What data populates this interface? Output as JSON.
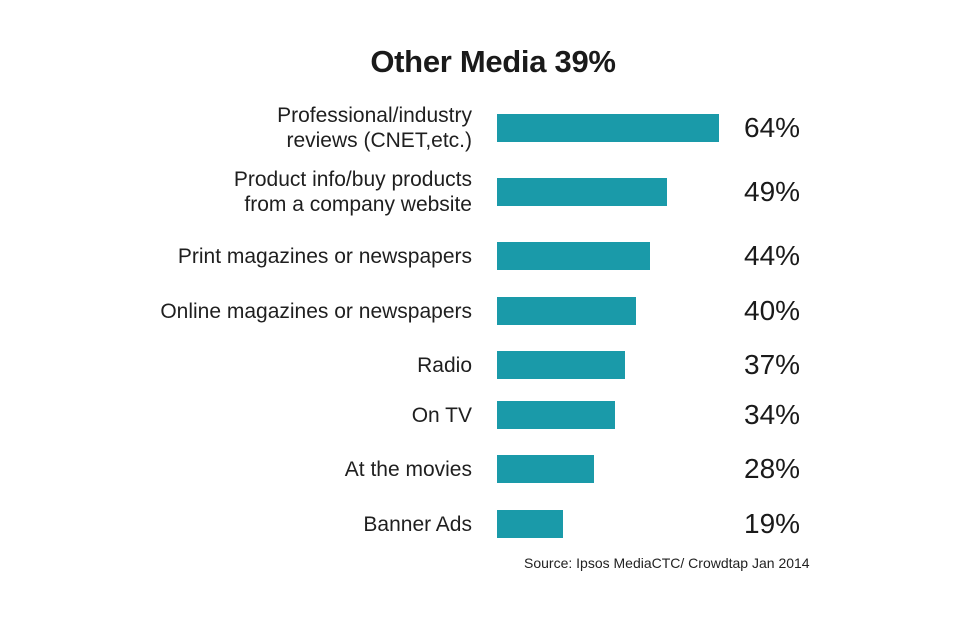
{
  "chart_data": {
    "type": "bar",
    "orientation": "horizontal",
    "title": "Other Media 39%",
    "categories": [
      "Professional/industry\nreviews (CNET,etc.)",
      "Product info/buy products\nfrom a company website",
      "Print magazines or newspapers",
      "Online magazines or newspapers",
      "Radio",
      "On TV",
      "At the movies",
      "Banner Ads"
    ],
    "values": [
      64,
      49,
      44,
      40,
      37,
      34,
      28,
      19
    ],
    "value_labels": [
      "64%",
      "49%",
      "44%",
      "40%",
      "37%",
      "34%",
      "28%",
      "19%"
    ],
    "bar_color": "#1a9aa9",
    "grid": false,
    "legend": "none",
    "source": "Source: Ipsos MediaCTC/ Crowdtap Jan 2014"
  }
}
